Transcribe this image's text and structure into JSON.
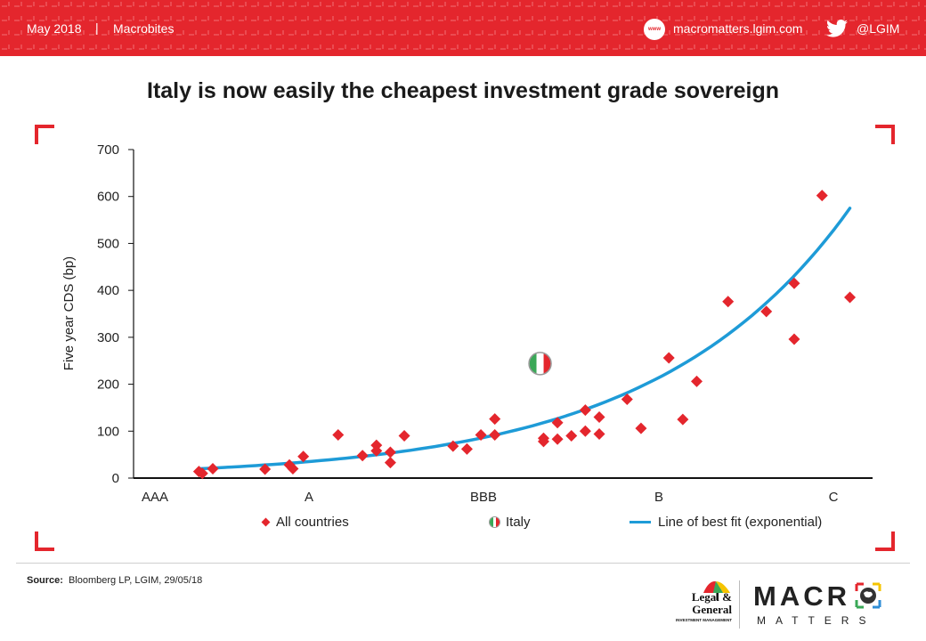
{
  "header": {
    "date": "May 2018",
    "separator": "|",
    "series": "Macrobites",
    "www_icon": "www",
    "url": "macromatters.lgim.com",
    "twitter_handle": "@LGIM",
    "brand_color": "#e4262d"
  },
  "chart_data": {
    "type": "scatter",
    "title": "Italy is now easily the cheapest investment grade sovereign",
    "ylabel": "Five year CDS (bp)",
    "xlabel": "",
    "ylim": [
      0,
      700
    ],
    "yticks": [
      0,
      100,
      200,
      300,
      400,
      500,
      600,
      700
    ],
    "xlim": [
      0,
      20
    ],
    "x_tick_labels": [
      {
        "x": 0,
        "label": "AAA"
      },
      {
        "x": 5,
        "label": "A"
      },
      {
        "x": 10,
        "label": "BBB"
      },
      {
        "x": 15,
        "label": "B"
      },
      {
        "x": 20,
        "label": "C"
      }
    ],
    "grid": false,
    "legend_position": "bottom",
    "series": [
      {
        "name": "All countries",
        "kind": "points",
        "marker": "diamond",
        "color": "#e4262d",
        "points": [
          [
            0.7,
            14
          ],
          [
            0.8,
            10
          ],
          [
            1.1,
            20
          ],
          [
            2.6,
            19
          ],
          [
            3.3,
            28
          ],
          [
            3.4,
            20
          ],
          [
            3.7,
            46
          ],
          [
            4.7,
            92
          ],
          [
            5.4,
            48
          ],
          [
            5.8,
            70
          ],
          [
            5.8,
            58
          ],
          [
            6.2,
            55
          ],
          [
            6.2,
            33
          ],
          [
            6.6,
            90
          ],
          [
            8.0,
            68
          ],
          [
            8.4,
            62
          ],
          [
            8.8,
            92
          ],
          [
            9.2,
            126
          ],
          [
            9.2,
            92
          ],
          [
            10.6,
            85
          ],
          [
            10.6,
            78
          ],
          [
            11.0,
            118
          ],
          [
            11.0,
            83
          ],
          [
            11.4,
            90
          ],
          [
            11.8,
            145
          ],
          [
            11.8,
            100
          ],
          [
            12.2,
            130
          ],
          [
            12.2,
            94
          ],
          [
            13.0,
            168
          ],
          [
            13.4,
            106
          ],
          [
            14.2,
            256
          ],
          [
            14.6,
            125
          ],
          [
            15.0,
            206
          ],
          [
            15.9,
            376
          ],
          [
            17.0,
            355
          ],
          [
            17.8,
            415
          ],
          [
            17.8,
            296
          ],
          [
            18.6,
            602
          ],
          [
            19.4,
            385
          ]
        ]
      },
      {
        "name": "Italy",
        "kind": "points",
        "marker": "flag",
        "points": [
          [
            10.5,
            244
          ]
        ]
      },
      {
        "name": "Line of best fit (exponential)",
        "kind": "line",
        "color": "#1e9bd7",
        "fit": {
          "a": 17.5,
          "b": 0.18,
          "x_from": 0.7,
          "x_to": 19.4
        }
      }
    ]
  },
  "legend": {
    "all_countries": "All countries",
    "italy": "Italy",
    "fit": "Line of best fit (exponential)"
  },
  "footer": {
    "source_label": "Source:",
    "source_text": "Bloomberg LP, LGIM,  29/05/18",
    "logo_line1": "Legal &",
    "logo_line2": "General",
    "logo_sub": "INVESTMENT MANAGEMENT",
    "macro": "MACR",
    "matters": "MATTERS"
  }
}
